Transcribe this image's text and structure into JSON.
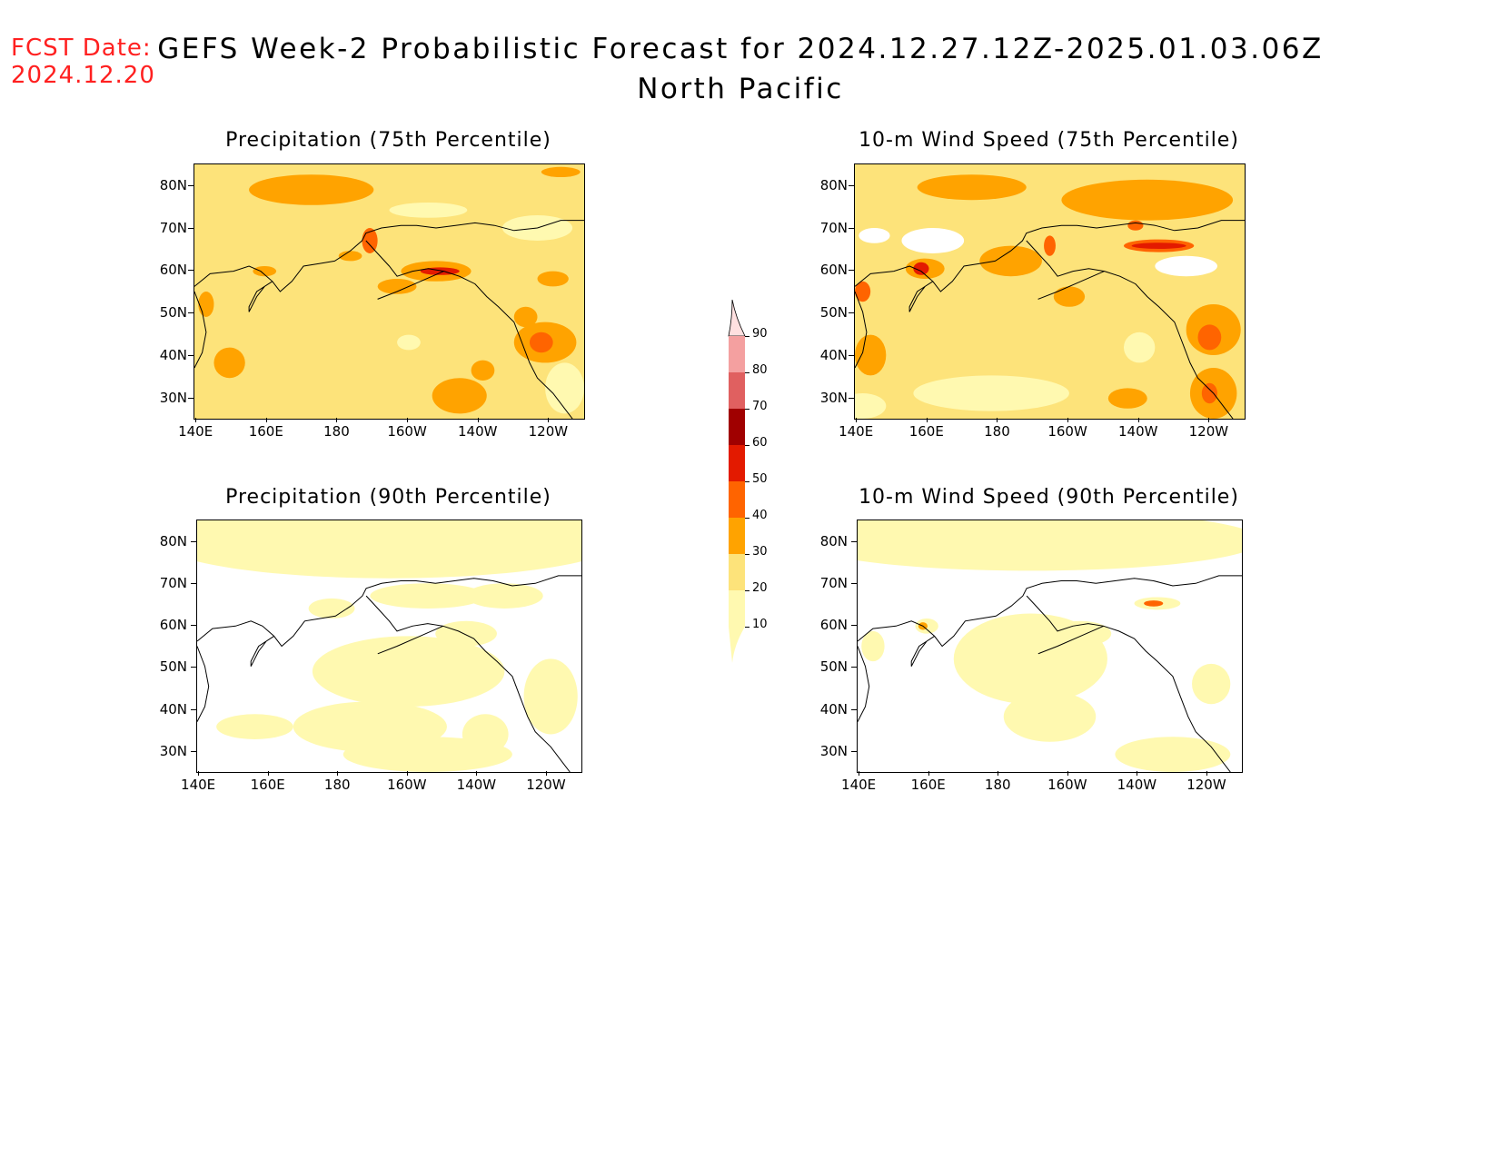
{
  "header": {
    "fcst_label": "FCST Date:",
    "fcst_date": "2024.12.20",
    "title_line1": "GEFS Week-2 Probabilistic Forecast for 2024.12.27.12Z-2025.01.03.06Z",
    "title_line2": "North Pacific"
  },
  "axes": {
    "lat_labels": [
      "80N",
      "70N",
      "60N",
      "50N",
      "40N",
      "30N"
    ],
    "lon_labels": [
      "140E",
      "160E",
      "180",
      "160W",
      "140W",
      "120W"
    ]
  },
  "panels": [
    {
      "id": "precip75",
      "title": "Precipitation (75th Percentile)",
      "background": "#fde37a"
    },
    {
      "id": "wind75",
      "title": "10-m Wind Speed (75th Percentile)",
      "background": "#fde37a"
    },
    {
      "id": "precip90",
      "title": "Precipitation (90th Percentile)",
      "background": "#ffffff"
    },
    {
      "id": "wind90",
      "title": "10-m Wind Speed (90th Percentile)",
      "background": "#ffffff"
    }
  ],
  "colorbar": {
    "levels": [
      "10",
      "20",
      "30",
      "40",
      "50",
      "60",
      "70",
      "80",
      "90"
    ],
    "colors": [
      "#fff9b0",
      "#fde37a",
      "#ffa300",
      "#ff6400",
      "#e31a00",
      "#a00000",
      "#e06060",
      "#f4a0a0",
      "#ffe0e0"
    ]
  }
}
